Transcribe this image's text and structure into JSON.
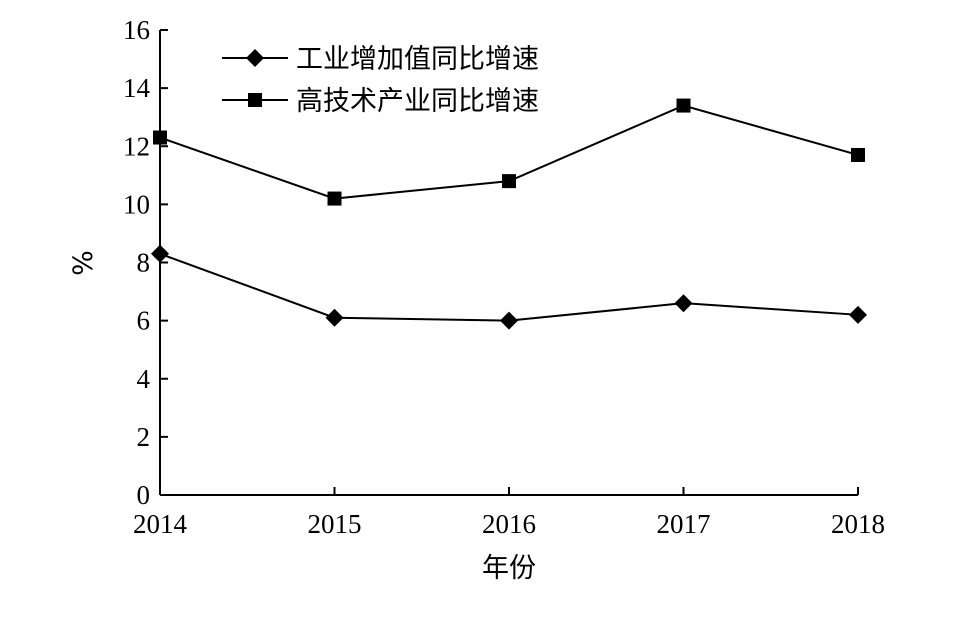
{
  "chart_data": {
    "type": "line",
    "title": "",
    "xlabel": "年份",
    "ylabel": "%",
    "categories": [
      "2014",
      "2015",
      "2016",
      "2017",
      "2018"
    ],
    "ylim": [
      0,
      16
    ],
    "yticks": [
      "0",
      "2",
      "4",
      "6",
      "8",
      "10",
      "12",
      "14",
      "16"
    ],
    "grid": false,
    "legend_position": "top-left",
    "series": [
      {
        "name": "工业增加值同比增速",
        "marker": "diamond",
        "values": [
          8.3,
          6.1,
          6.0,
          6.6,
          6.2
        ]
      },
      {
        "name": "高技术产业同比增速",
        "marker": "square",
        "values": [
          12.3,
          10.2,
          10.8,
          13.4,
          11.7
        ]
      }
    ]
  }
}
